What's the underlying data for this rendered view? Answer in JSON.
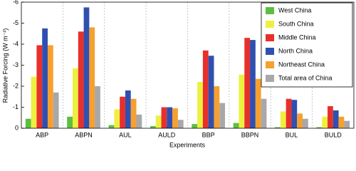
{
  "chart_data": {
    "type": "bar",
    "ylabel": "Radiative Forcing (W m⁻²)",
    "xlabel": "Experiments",
    "categories": [
      "ABP",
      "ABPN",
      "AUL",
      "AULD",
      "BBP",
      "BBPN",
      "BUL",
      "BULD"
    ],
    "series": [
      {
        "name": "West China",
        "color": "#5cbf3f",
        "values": [
          -0.45,
          -0.55,
          -0.15,
          -0.1,
          -0.2,
          -0.25,
          -0.05,
          -0.05
        ]
      },
      {
        "name": "South China",
        "color": "#eef040",
        "values": [
          -2.45,
          -2.85,
          -0.9,
          -0.6,
          -2.2,
          -2.55,
          -0.8,
          -0.55
        ]
      },
      {
        "name": "Middle China",
        "color": "#e8302b",
        "values": [
          -3.95,
          -4.6,
          -1.5,
          -1.0,
          -3.7,
          -4.3,
          -1.4,
          -1.05
        ]
      },
      {
        "name": "North China",
        "color": "#3050b0",
        "values": [
          -4.75,
          -5.75,
          -1.8,
          -1.0,
          -3.45,
          -4.2,
          -1.35,
          -0.85
        ]
      },
      {
        "name": "Northeast China",
        "color": "#f5a030",
        "values": [
          -3.95,
          -4.8,
          -1.4,
          -0.95,
          -2.0,
          -2.35,
          -0.7,
          -0.55
        ]
      },
      {
        "name": "Total area of China",
        "color": "#a8a8a8",
        "values": [
          -1.7,
          -2.0,
          -0.65,
          -0.4,
          -1.2,
          -1.4,
          -0.45,
          -0.35
        ]
      }
    ],
    "ylim": [
      0,
      -6
    ],
    "yticks": [
      0,
      -1,
      -2,
      -3,
      -4,
      -5,
      -6
    ],
    "legend": "upper right"
  }
}
